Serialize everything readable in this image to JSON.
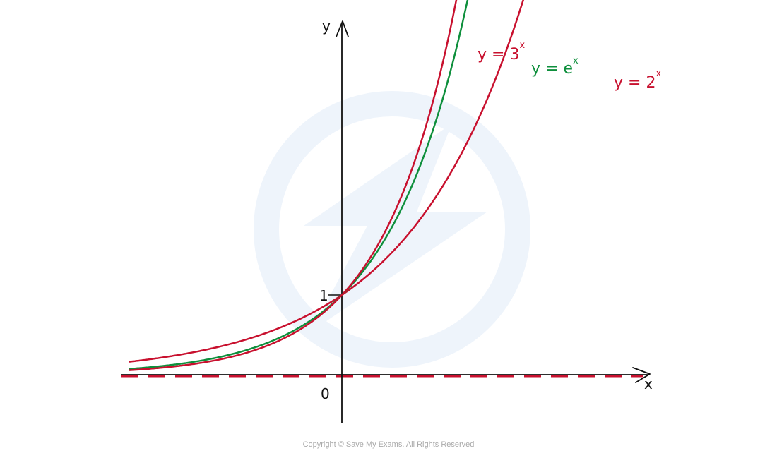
{
  "colors": {
    "red": "#c8102e",
    "green": "#0e8f3c",
    "axis": "#111111",
    "watermark": "#eef4fb"
  },
  "axes": {
    "x_label": "x",
    "y_label": "y",
    "origin_label": "0",
    "y_intercept_label": "1"
  },
  "curves": [
    {
      "id": "three-x",
      "label_prefix": "y = 3",
      "label_exponent": "x",
      "color": "red",
      "base": 3
    },
    {
      "id": "e-x",
      "label_prefix": "y = e",
      "label_exponent": "x",
      "color": "green",
      "base": 2.718281828
    },
    {
      "id": "two-x",
      "label_prefix": "y = 2",
      "label_exponent": "x",
      "color": "red",
      "base": 2
    }
  ],
  "asymptote": {
    "equation": "y = 0",
    "style": "dashed",
    "color": "red"
  },
  "watermark": {
    "icon": "save-my-exams-logo-icon"
  },
  "copyright": "Copyright © Save My Exams. All Rights Reserved"
}
